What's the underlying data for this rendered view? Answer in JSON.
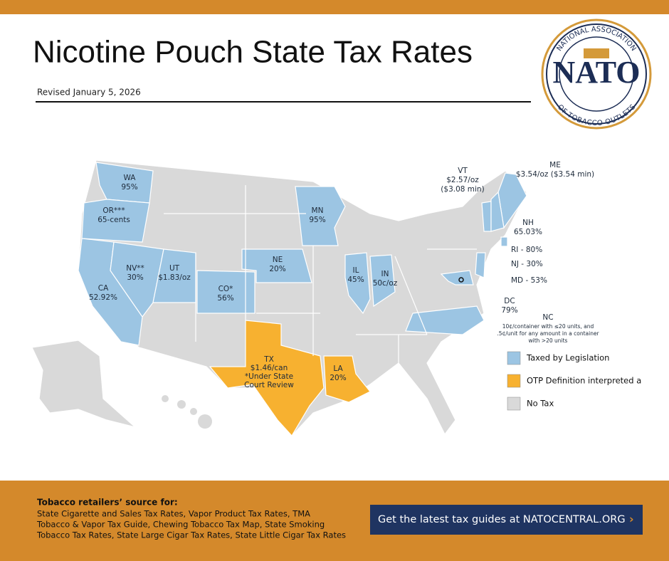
{
  "header": {
    "title": "Nicotine Pouch State Tax Rates",
    "revised": "Revised January 5, 2026"
  },
  "logo": {
    "top": "NATIONAL ASSOCIATION",
    "name": "NATO",
    "bottom": "OF TOBACCO OUTLETS"
  },
  "map": {
    "states": [
      {
        "lines": [
          "WA",
          "95%"
        ],
        "color": "#9cc5e3"
      },
      {
        "lines": [
          "OR***",
          "65-cents"
        ],
        "color": "#9cc5e3"
      },
      {
        "lines": [
          "CA",
          "52.92%"
        ],
        "color": "#9cc5e3"
      },
      {
        "lines": [
          "NV**",
          "30%"
        ],
        "color": "#9cc5e3"
      },
      {
        "lines": [
          "UT",
          "$1.83/oz"
        ],
        "color": "#9cc5e3"
      },
      {
        "lines": [
          "CO*",
          "56%"
        ],
        "color": "#9cc5e3"
      },
      {
        "lines": [
          "NE",
          "20%"
        ],
        "color": "#9cc5e3"
      },
      {
        "lines": [
          "MN",
          "95%"
        ],
        "color": "#9cc5e3"
      },
      {
        "lines": [
          "IL",
          "45%"
        ],
        "color": "#9cc5e3"
      },
      {
        "lines": [
          "IN",
          "50c/oz"
        ],
        "color": "#9cc5e3"
      },
      {
        "lines": [
          "TX",
          "$1.46/can",
          "*Under State",
          "Court Review"
        ],
        "color": "#f7b130"
      },
      {
        "lines": [
          "LA",
          "20%"
        ],
        "color": "#f7b130"
      },
      {
        "lines": [
          "VT",
          "$2.57/oz",
          "($3.08 min)"
        ],
        "color": "#9cc5e3"
      },
      {
        "lines": [
          "ME",
          "$3.54/oz ($3.54 min)"
        ],
        "color": "#9cc5e3"
      },
      {
        "lines": [
          "NH",
          "65.03%"
        ],
        "color": "#9cc5e3"
      },
      {
        "lines": [
          "RI - 80%"
        ],
        "color": "#9cc5e3"
      },
      {
        "lines": [
          "NJ - 30%"
        ],
        "color": "#9cc5e3"
      },
      {
        "lines": [
          "MD - 53%"
        ],
        "color": "#9cc5e3"
      },
      {
        "lines": [
          "DC",
          "79%"
        ],
        "color": "#9cc5e3"
      },
      {
        "lines": [
          "NC",
          "10¢/container with ≤20 units, and",
          ".5¢/unit for any amount in a container",
          "with >20 units"
        ],
        "color": "#9cc5e3"
      }
    ]
  },
  "legend": [
    {
      "label": "Taxed by Legislation",
      "color": "#9cc5e3"
    },
    {
      "label": "OTP Definition interpreted a",
      "color": "#f7b130"
    },
    {
      "label": "No Tax",
      "color": "#d9d9d9"
    }
  ],
  "footer": {
    "heading": "Tobacco retailers’ source for:",
    "lines": [
      "State Cigarette and Sales Tax Rates, Vapor Product Tax Rates,  TMA",
      "Tobacco & Vapor Tax Guide, Chewing Tobacco Tax Map, State Smoking",
      "Tobacco Tax Rates, State Large Cigar Tax Rates, State Little Cigar Tax Rates"
    ],
    "button": "Get the latest tax guides at  NATOCENTRAL.ORG",
    "arrow": "›"
  }
}
